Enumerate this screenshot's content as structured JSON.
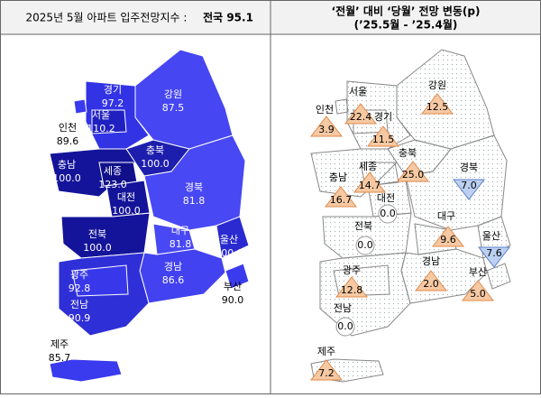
{
  "left": {
    "title": "2025년 5월 아파트 입주전망지수 :",
    "national": "전국 95.1",
    "regions": [
      {
        "name": "경기",
        "value": "97.2",
        "color": "#3333e6"
      },
      {
        "name": "서울",
        "value": "110.2",
        "color": "#2020c0"
      },
      {
        "name": "강원",
        "value": "87.5",
        "color": "#4646f2"
      },
      {
        "name": "인천",
        "value": "89.6",
        "color": "#3a3aee"
      },
      {
        "name": "충북",
        "value": "100.0",
        "color": "#1e1eae"
      },
      {
        "name": "충남",
        "value": "100.0",
        "color": "#14149a"
      },
      {
        "name": "세종",
        "value": "123.0",
        "color": "#10108a"
      },
      {
        "name": "대전",
        "value": "100.0",
        "color": "#14149a"
      },
      {
        "name": "경북",
        "value": "81.8",
        "color": "#4848f4"
      },
      {
        "name": "전북",
        "value": "100.0",
        "color": "#14149a"
      },
      {
        "name": "대구",
        "value": "81.8",
        "color": "#4848f4"
      },
      {
        "name": "울산",
        "value": "100.0",
        "color": "#2a2ad0"
      },
      {
        "name": "광주",
        "value": "92.8",
        "color": "#3838ea"
      },
      {
        "name": "경남",
        "value": "86.6",
        "color": "#4242f0"
      },
      {
        "name": "부산",
        "value": "90.0",
        "color": "#3a3aee"
      },
      {
        "name": "전남",
        "value": "90.9",
        "color": "#2f2fd8"
      },
      {
        "name": "제주",
        "value": "85.7",
        "color": "#3a3aee"
      }
    ]
  },
  "right": {
    "title": "‘전월’ 대비 ‘당월’ 전망 변동(p)",
    "subtitle": "(’25.5월 - ’25.4월)",
    "regions": [
      {
        "name": "경기",
        "change": "11.5",
        "trend": "up"
      },
      {
        "name": "서울",
        "change": "22.4",
        "trend": "up"
      },
      {
        "name": "강원",
        "change": "12.5",
        "trend": "up"
      },
      {
        "name": "인천",
        "change": "3.9",
        "trend": "up"
      },
      {
        "name": "충북",
        "change": "25.0",
        "trend": "up"
      },
      {
        "name": "충남",
        "change": "16.7",
        "trend": "up"
      },
      {
        "name": "세종",
        "change": "14.7",
        "trend": "up"
      },
      {
        "name": "대전",
        "change": "0.0",
        "trend": "flat"
      },
      {
        "name": "경북",
        "change": "7.0",
        "trend": "down"
      },
      {
        "name": "전북",
        "change": "0.0",
        "trend": "flat"
      },
      {
        "name": "대구",
        "change": "9.6",
        "trend": "up"
      },
      {
        "name": "울산",
        "change": "7.6",
        "trend": "down"
      },
      {
        "name": "광주",
        "change": "12.8",
        "trend": "up"
      },
      {
        "name": "경남",
        "change": "2.0",
        "trend": "up"
      },
      {
        "name": "부산",
        "change": "5.0",
        "trend": "up"
      },
      {
        "name": "전남",
        "change": "0.0",
        "trend": "flat"
      },
      {
        "name": "제주",
        "change": "7.2",
        "trend": "up"
      }
    ]
  }
}
